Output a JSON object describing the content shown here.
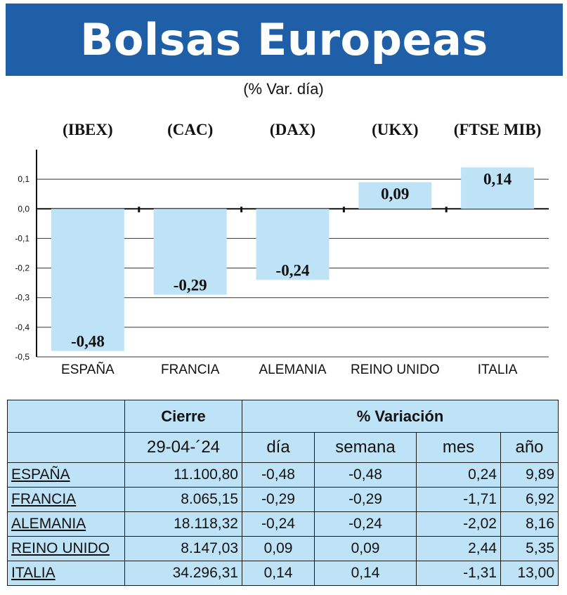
{
  "title": "Bolsas Europeas",
  "subtitle": "(% Var. día)",
  "chart_data": {
    "type": "bar",
    "categories": [
      "ESPAÑA",
      "FRANCIA",
      "ALEMANIA",
      "REINO UNIDO",
      "ITALIA"
    ],
    "tickers": [
      "(IBEX)",
      "(CAC)",
      "(DAX)",
      "(UKX)",
      "(FTSE MIB)"
    ],
    "values": [
      -0.48,
      -0.29,
      -0.24,
      0.09,
      0.14
    ],
    "value_labels": [
      "-0,48",
      "-0,29",
      "-0,24",
      "0,09",
      "0,14"
    ],
    "ylim": [
      -0.5,
      0.2
    ],
    "yticks": [
      "0,1",
      "0,0",
      "-0,1",
      "-0,2",
      "-0,3",
      "-0,4",
      "-0,5"
    ],
    "ytick_values": [
      0.1,
      0.0,
      -0.1,
      -0.2,
      -0.3,
      -0.4,
      -0.5
    ],
    "grid": true,
    "bar_color": "#bfe3f6"
  },
  "table": {
    "group_headers": {
      "cierre": "Cierre",
      "variacion": "% Variación"
    },
    "columns": [
      "29-04-´24",
      "día",
      "semana",
      "mes",
      "año"
    ],
    "rows": [
      {
        "name": "ESPAÑA",
        "cierre": "11.100,80",
        "dia": "-0,48",
        "semana": "-0,48",
        "mes": "0,24",
        "ano": "9,89"
      },
      {
        "name": "FRANCIA",
        "cierre": "8.065,15",
        "dia": "-0,29",
        "semana": "-0,29",
        "mes": "-1,71",
        "ano": "6,92"
      },
      {
        "name": "ALEMANIA",
        "cierre": "18.118,32",
        "dia": "-0,24",
        "semana": "-0,24",
        "mes": "-2,02",
        "ano": "8,16"
      },
      {
        "name": "REINO UNIDO",
        "cierre": "8.147,03",
        "dia": "0,09",
        "semana": "0,09",
        "mes": "2,44",
        "ano": "5,35"
      },
      {
        "name": "ITALIA",
        "cierre": "34.296,31",
        "dia": "0,14",
        "semana": "0,14",
        "mes": "-1,31",
        "ano": "13,00"
      }
    ]
  }
}
